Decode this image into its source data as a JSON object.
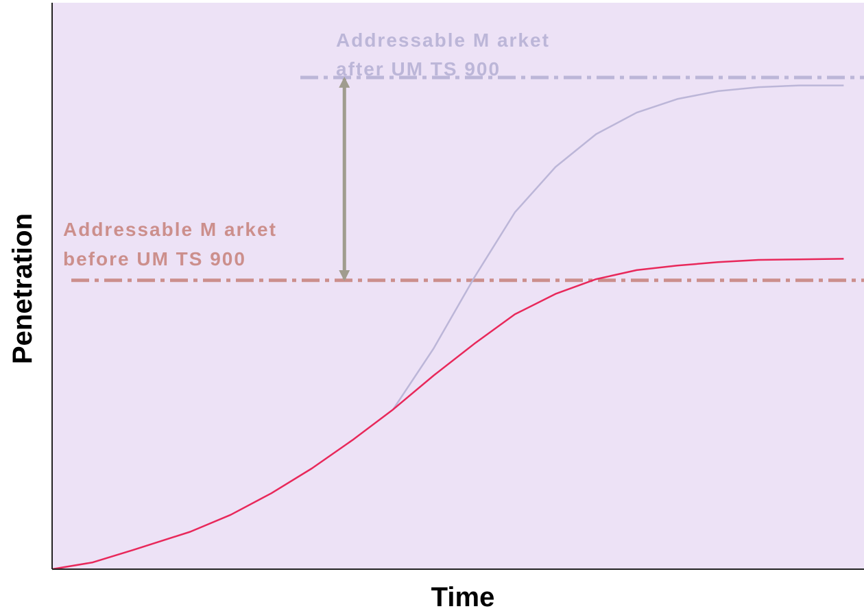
{
  "chart_data": {
    "type": "line",
    "xlabel": "Time",
    "ylabel": "Penetration",
    "xlim": [
      0,
      100
    ],
    "ylim": [
      0,
      100
    ],
    "grid": false,
    "background": "#ede2f6",
    "x": [
      0,
      5,
      10,
      17,
      22,
      27,
      32,
      37,
      42,
      47,
      52,
      57,
      62,
      67,
      72,
      77,
      82,
      87,
      92,
      97.5
    ],
    "series": [
      {
        "color": "#e8285a",
        "values": [
          0,
          1.2,
          3.4,
          6.6,
          9.6,
          13.4,
          17.8,
          22.8,
          28.2,
          34.2,
          39.8,
          45.0,
          48.6,
          51.2,
          52.8,
          53.6,
          54.2,
          54.6,
          54.7,
          54.8
        ]
      },
      {
        "color": "#bcb6d8",
        "values": [
          null,
          null,
          null,
          null,
          null,
          null,
          null,
          null,
          28.2,
          39.0,
          51.5,
          63.0,
          71.0,
          76.8,
          80.6,
          83.0,
          84.4,
          85.1,
          85.4,
          85.4
        ]
      }
    ],
    "reference_lines": [
      {
        "y": 86.8,
        "color": "#bcb6d8",
        "style": "dash-dot",
        "label": [
          "Addressable M arket",
          "after UM TS 900"
        ]
      },
      {
        "y": 51.0,
        "color": "#cc8f8c",
        "style": "dash-dot",
        "label": [
          "Addressable M arket",
          "before UM TS 900"
        ]
      }
    ],
    "annotation_arrow": {
      "x": 36.0,
      "from_y": 51.0,
      "to_y": 86.8,
      "color": "#a09c8e",
      "style": "double-headed"
    }
  }
}
